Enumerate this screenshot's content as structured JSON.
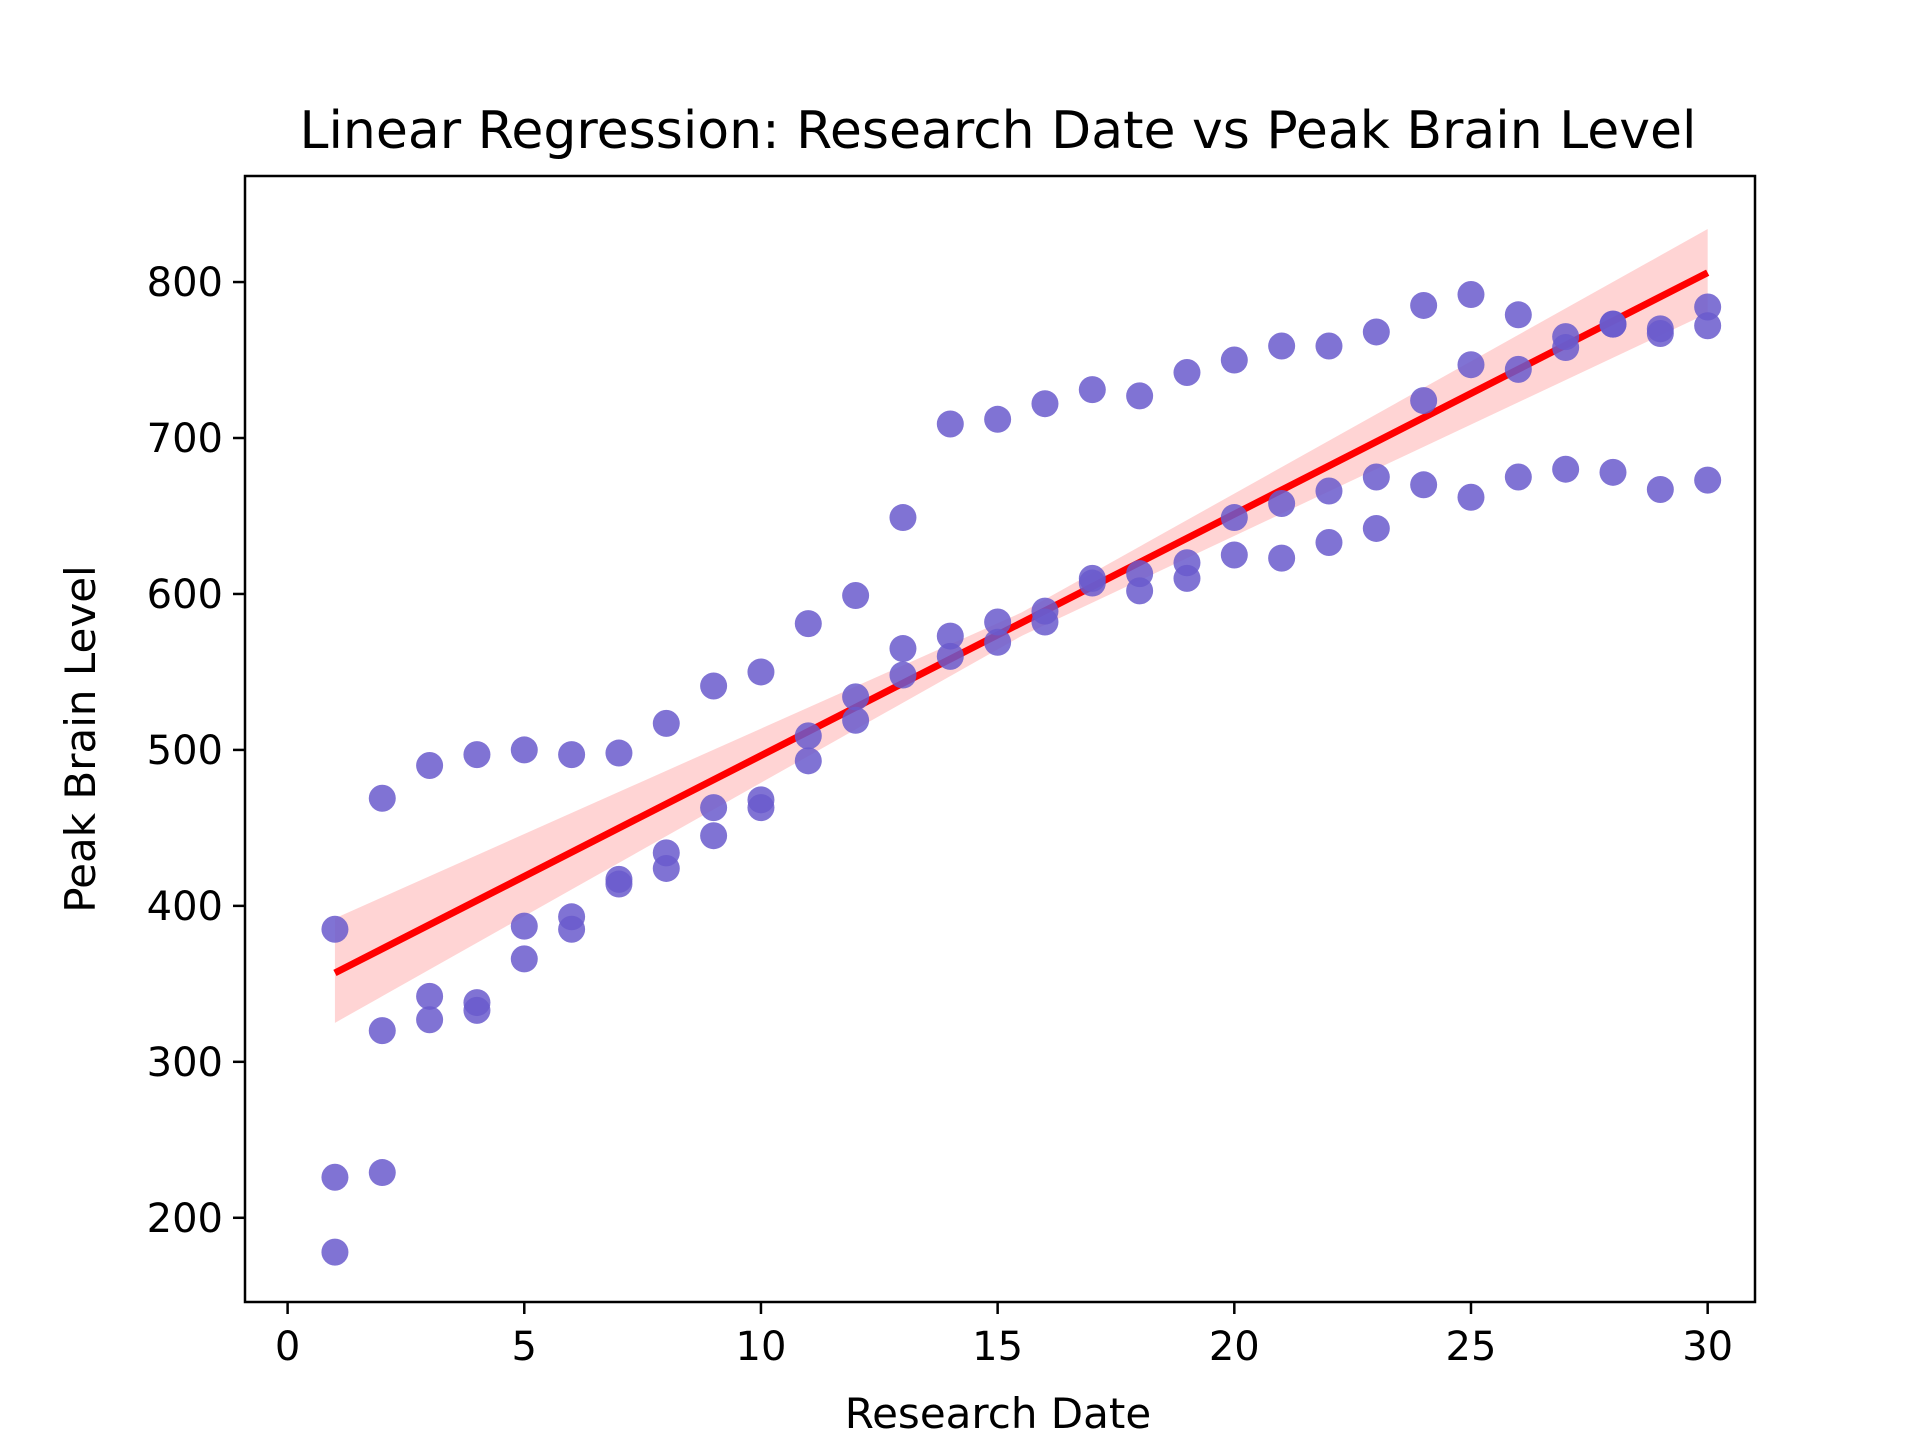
{
  "chart_data": {
    "type": "scatter",
    "title": "Linear Regression: Research Date vs Peak Brain Level",
    "xlabel": "Research Date",
    "ylabel": "Peak Brain Level",
    "xlim": [
      -0.9,
      31.0
    ],
    "ylim": [
      146,
      868
    ],
    "xticks": [
      0,
      5,
      10,
      15,
      20,
      25,
      30
    ],
    "yticks": [
      200,
      300,
      400,
      500,
      600,
      700,
      800
    ],
    "grid": false,
    "legend": "none",
    "colors": {
      "points": "#6a5acd",
      "regression_line": "#ff0000",
      "confidence_band": "#ffcccc"
    },
    "series": [
      {
        "x": [
          1,
          1,
          1,
          2,
          2,
          2,
          3,
          3,
          3,
          4,
          4,
          4,
          5,
          5,
          5,
          6,
          6,
          6,
          7,
          7,
          7,
          8,
          8,
          8,
          9,
          9,
          9,
          10,
          10,
          10,
          11,
          11,
          11,
          12,
          12,
          12,
          13,
          13,
          13,
          14,
          14,
          14,
          15,
          15,
          15,
          16,
          16,
          16,
          17,
          17,
          17,
          18,
          18,
          18,
          19,
          19,
          19,
          20,
          20,
          20,
          21,
          21,
          21,
          22,
          22,
          22,
          23,
          23,
          23,
          24,
          24,
          24,
          25,
          25,
          25,
          26,
          26,
          26,
          27,
          27,
          27,
          28,
          28,
          28,
          29,
          29,
          29,
          30,
          30,
          30
        ],
        "y": [
          385,
          226,
          178,
          469,
          320,
          229,
          490,
          342,
          327,
          497,
          338,
          333,
          500,
          387,
          366,
          497,
          393,
          385,
          498,
          417,
          414,
          517,
          434,
          424,
          541,
          463,
          445,
          550,
          468,
          463,
          581,
          509,
          493,
          599,
          534,
          519,
          649,
          565,
          548,
          709,
          573,
          560,
          712,
          582,
          569,
          722,
          589,
          582,
          731,
          610,
          607,
          727,
          613,
          602,
          742,
          620,
          610,
          750,
          649,
          625,
          759,
          658,
          623,
          759,
          666,
          633,
          768,
          675,
          642,
          785,
          724,
          670,
          792,
          747,
          662,
          779,
          744,
          675,
          765,
          758,
          680,
          773,
          773,
          678,
          770,
          767,
          667,
          784,
          772,
          673
        ]
      }
    ],
    "regression": {
      "x": [
        1,
        30
      ],
      "y": [
        357,
        806
      ]
    },
    "confidence_band": {
      "x": [
        1,
        15.5,
        30
      ],
      "lower": [
        325,
        573,
        780
      ],
      "upper": [
        392,
        588,
        834
      ]
    }
  }
}
